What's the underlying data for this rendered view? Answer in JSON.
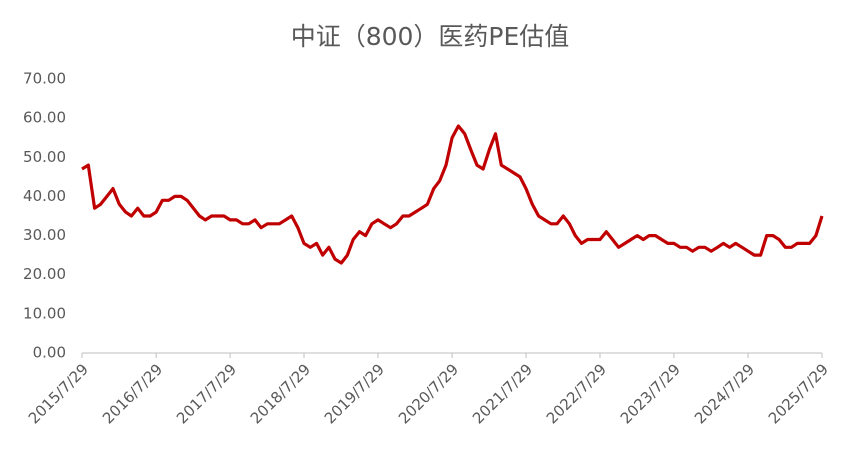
{
  "chart_data": {
    "type": "line",
    "title": "中证（800）医药PE估值",
    "x": [
      "2015/7/29",
      "2015/8/29",
      "2015/9/29",
      "2015/10/29",
      "2015/11/29",
      "2015/12/29",
      "2016/1/29",
      "2016/2/29",
      "2016/3/29",
      "2016/4/29",
      "2016/5/29",
      "2016/6/29",
      "2016/7/29",
      "2016/8/29",
      "2016/9/29",
      "2016/10/29",
      "2016/11/29",
      "2016/12/29",
      "2017/1/29",
      "2017/2/28",
      "2017/3/29",
      "2017/4/29",
      "2017/5/29",
      "2017/6/29",
      "2017/7/29",
      "2017/8/29",
      "2017/9/29",
      "2017/10/29",
      "2017/11/29",
      "2017/12/29",
      "2018/1/29",
      "2018/2/28",
      "2018/3/29",
      "2018/4/29",
      "2018/5/29",
      "2018/6/29",
      "2018/7/29",
      "2018/8/29",
      "2018/9/29",
      "2018/10/29",
      "2018/11/29",
      "2018/12/29",
      "2019/1/29",
      "2019/2/28",
      "2019/3/29",
      "2019/4/29",
      "2019/5/29",
      "2019/6/29",
      "2019/7/29",
      "2019/8/29",
      "2019/9/29",
      "2019/10/29",
      "2019/11/29",
      "2019/12/29",
      "2020/1/29",
      "2020/2/29",
      "2020/3/29",
      "2020/4/29",
      "2020/5/29",
      "2020/6/29",
      "2020/7/29",
      "2020/8/29",
      "2020/9/29",
      "2020/10/29",
      "2020/11/29",
      "2020/12/29",
      "2021/1/29",
      "2021/2/28",
      "2021/3/29",
      "2021/4/29",
      "2021/5/29",
      "2021/6/29",
      "2021/7/29",
      "2021/8/29",
      "2021/9/29",
      "2021/10/29",
      "2021/11/29",
      "2021/12/29",
      "2022/1/29",
      "2022/2/28",
      "2022/3/29",
      "2022/4/29",
      "2022/5/29",
      "2022/6/29",
      "2022/7/29",
      "2022/8/29",
      "2022/9/29",
      "2022/10/29",
      "2022/11/29",
      "2022/12/29",
      "2023/1/29",
      "2023/2/28",
      "2023/3/29",
      "2023/4/29",
      "2023/5/29",
      "2023/6/29",
      "2023/7/29",
      "2023/8/29",
      "2023/9/29",
      "2023/10/29",
      "2023/11/29",
      "2023/12/29",
      "2024/1/29",
      "2024/2/29",
      "2024/3/29",
      "2024/4/29",
      "2024/5/29",
      "2024/6/29",
      "2024/7/29",
      "2024/8/29",
      "2024/9/29",
      "2024/10/29",
      "2024/11/29",
      "2024/12/29",
      "2025/1/29",
      "2025/2/28",
      "2025/3/29",
      "2025/4/29",
      "2025/5/29",
      "2025/6/29",
      "2025/7/29"
    ],
    "series": [
      {
        "color": "#c00000",
        "values": [
          47,
          48,
          37,
          38,
          40,
          42,
          38,
          36,
          35,
          37,
          35,
          35,
          36,
          39,
          39,
          40,
          40,
          39,
          37,
          35,
          34,
          35,
          35,
          35,
          34,
          34,
          33,
          33,
          34,
          32,
          33,
          33,
          33,
          34,
          35,
          32,
          28,
          27,
          28,
          25,
          27,
          24,
          23,
          25,
          29,
          31,
          30,
          33,
          34,
          33,
          32,
          33,
          35,
          35,
          36,
          37,
          38,
          42,
          44,
          48,
          55,
          58,
          56,
          52,
          48,
          47,
          52,
          56,
          48,
          47,
          46,
          45,
          42,
          38,
          35,
          34,
          33,
          33,
          35,
          33,
          30,
          28,
          29,
          29,
          29,
          31,
          29,
          27,
          28,
          29,
          30,
          29,
          30,
          30,
          29,
          28,
          28,
          27,
          27,
          26,
          27,
          27,
          26,
          27,
          28,
          27,
          28,
          27,
          26,
          25,
          25,
          30,
          30,
          29,
          27,
          27,
          28,
          28,
          28,
          30,
          35
        ]
      }
    ],
    "xlim": [
      "2015/7/29",
      "2025/7/29"
    ],
    "xticks": [
      "2015/7/29",
      "2016/7/29",
      "2017/7/29",
      "2018/7/29",
      "2019/7/29",
      "2020/7/29",
      "2021/7/29",
      "2022/7/29",
      "2023/7/29",
      "2024/7/29",
      "2025/7/29"
    ],
    "ylim": [
      0,
      70
    ],
    "yticks": [
      {
        "value": 0,
        "label": "0.00"
      },
      {
        "value": 10,
        "label": "10.00"
      },
      {
        "value": 20,
        "label": "20.00"
      },
      {
        "value": 30,
        "label": "30.00"
      },
      {
        "value": 40,
        "label": "40.00"
      },
      {
        "value": 50,
        "label": "50.00"
      },
      {
        "value": 60,
        "label": "60.00"
      },
      {
        "value": 70,
        "label": "70.00"
      }
    ],
    "grid": false
  }
}
